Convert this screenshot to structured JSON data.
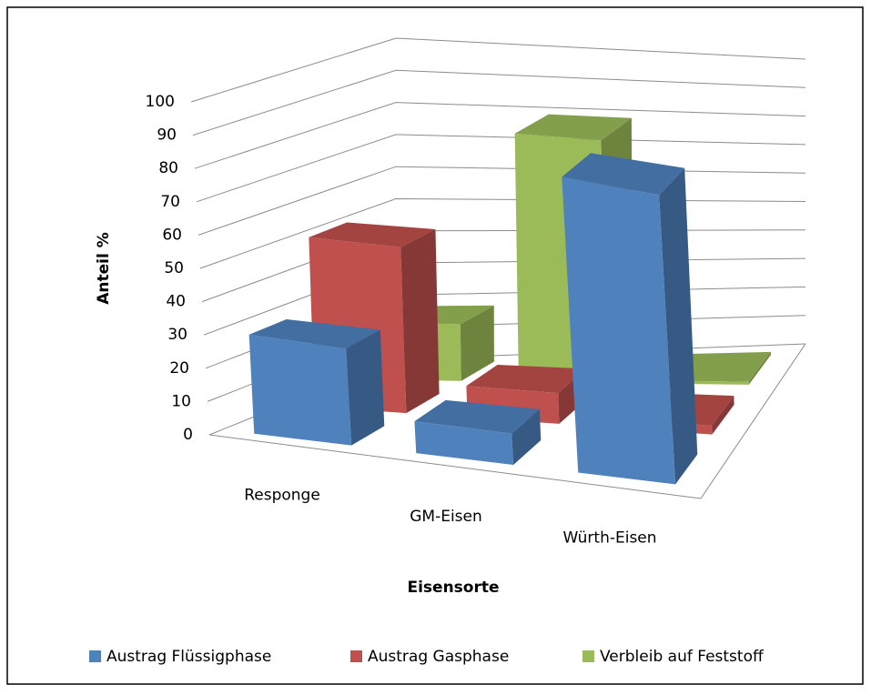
{
  "chart_data": {
    "type": "bar3d",
    "y_label": "Anteil %",
    "x_label": "Eisensorte",
    "categories": [
      "Responge",
      "GM-Eisen",
      "Würth-Eisen"
    ],
    "series": [
      {
        "name": "Austrag Flüssigphase",
        "color": "#4f81bd",
        "values": [
          30,
          10,
          96
        ]
      },
      {
        "name": "Austrag Gasphase",
        "color": "#c0504d",
        "values": [
          52,
          10,
          3
        ]
      },
      {
        "name": "Verbleib auf Feststoff",
        "color": "#9bbb59",
        "values": [
          18,
          80,
          1
        ]
      }
    ],
    "ylim": [
      0,
      100
    ],
    "yticks": [
      0,
      10,
      20,
      30,
      40,
      50,
      60,
      70,
      80,
      90,
      100
    ],
    "grid": true,
    "legend": "bottom"
  }
}
